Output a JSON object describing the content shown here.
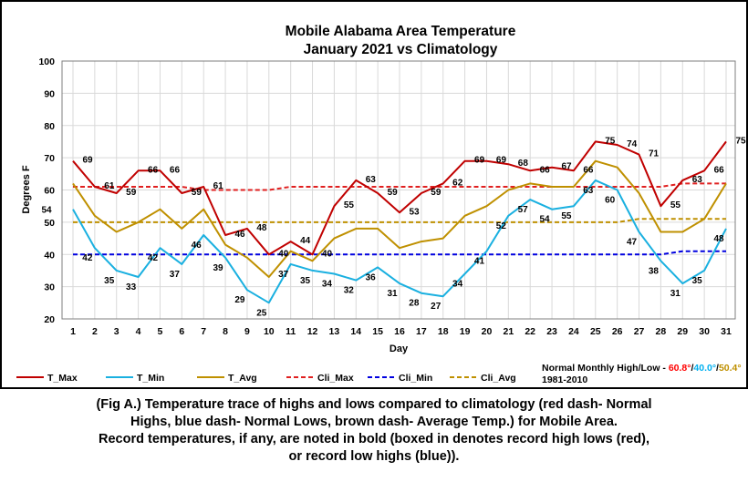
{
  "chart_data": {
    "type": "line",
    "title_line1": "Mobile Alabama Area Temperature",
    "title_line2": "January 2021 vs Climatology",
    "xlabel": "Day",
    "ylabel": "Degrees F",
    "ylim": [
      20,
      100
    ],
    "yticks": [
      "20",
      "30",
      "40",
      "50",
      "60",
      "70",
      "80",
      "90",
      "100"
    ],
    "x": [
      1,
      2,
      3,
      4,
      5,
      6,
      7,
      8,
      9,
      10,
      11,
      12,
      13,
      14,
      15,
      16,
      17,
      18,
      19,
      20,
      21,
      22,
      23,
      24,
      25,
      26,
      27,
      28,
      29,
      30,
      31
    ],
    "grid": true,
    "legend_position": "bottom",
    "series": [
      {
        "name": "T_Max",
        "color": "#c00000",
        "dash": false,
        "labeled": true,
        "values": [
          69,
          61,
          59,
          66,
          66,
          59,
          61,
          46,
          48,
          40,
          44,
          40,
          55,
          63,
          59,
          53,
          59,
          62,
          69,
          69,
          68,
          66,
          67,
          66,
          75,
          74,
          71,
          55,
          63,
          66,
          75
        ]
      },
      {
        "name": "T_Min",
        "color": "#1ab0e0",
        "dash": false,
        "labeled": true,
        "values": [
          54,
          42,
          35,
          33,
          42,
          37,
          46,
          39,
          29,
          25,
          37,
          35,
          34,
          32,
          36,
          31,
          28,
          27,
          34,
          41,
          52,
          57,
          54,
          55,
          63,
          60,
          47,
          38,
          31,
          35,
          48
        ]
      },
      {
        "name": "T_Avg",
        "color": "#bf9000",
        "dash": false,
        "labeled": false,
        "values": [
          62,
          52,
          47,
          50,
          54,
          48,
          54,
          43,
          39,
          33,
          41,
          38,
          45,
          48,
          48,
          42,
          44,
          45,
          52,
          55,
          60,
          62,
          61,
          61,
          69,
          67,
          59,
          47,
          47,
          51,
          62
        ]
      },
      {
        "name": "Cli_Max",
        "color": "#e02020",
        "dash": true,
        "labeled": false,
        "values": [
          61,
          61,
          61,
          61,
          61,
          61,
          60,
          60,
          60,
          60,
          61,
          61,
          61,
          61,
          61,
          61,
          61,
          61,
          61,
          61,
          61,
          61,
          61,
          61,
          61,
          61,
          61,
          61,
          62,
          62,
          62
        ]
      },
      {
        "name": "Cli_Min",
        "color": "#0000e0",
        "dash": true,
        "labeled": false,
        "values": [
          40,
          40,
          40,
          40,
          40,
          40,
          40,
          40,
          40,
          40,
          40,
          40,
          40,
          40,
          40,
          40,
          40,
          40,
          40,
          40,
          40,
          40,
          40,
          40,
          40,
          40,
          40,
          40,
          41,
          41,
          41
        ]
      },
      {
        "name": "Cli_Avg",
        "color": "#bf9000",
        "dash": true,
        "labeled": false,
        "values": [
          50,
          50,
          50,
          50,
          50,
          50,
          50,
          50,
          50,
          50,
          50,
          50,
          50,
          50,
          50,
          50,
          50,
          50,
          50,
          50,
          50,
          50,
          50,
          50,
          50,
          50,
          51,
          51,
          51,
          51,
          51
        ]
      }
    ],
    "normals_note": {
      "prefix": "Normal Monthly  High/Low - ",
      "high": "60.8°",
      "sep1": "/",
      "low": "40.0°",
      "sep2": "/",
      "avg": "50.4°",
      "period": "1981-2010",
      "high_color": "#ff0000",
      "low_color": "#00b0f0",
      "avg_color": "#bf9000"
    }
  },
  "caption": {
    "line1": "(Fig A.) Temperature trace of highs and lows compared to climatology (red dash- Normal",
    "line2": "Highs, blue dash- Normal Lows, brown dash- Average Temp.) for Mobile Area.",
    "line3": "Record temperatures, if any, are noted in bold (boxed in denotes record high lows (red),",
    "line4": "or record low highs (blue))."
  }
}
